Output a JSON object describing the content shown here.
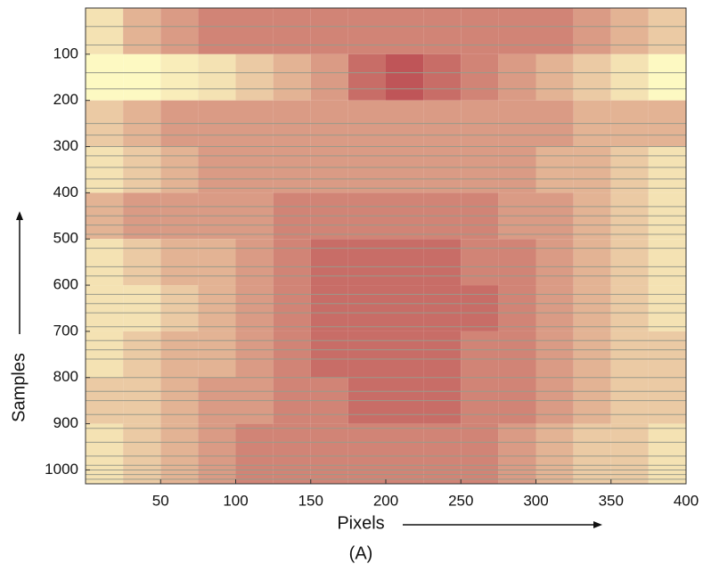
{
  "chart_data": {
    "type": "raster",
    "xlabel": "Pixels",
    "ylabel": "Samples",
    "caption": "(A)",
    "xlim": [
      0,
      400
    ],
    "ylim": [
      0,
      1030
    ],
    "xticks": [
      50,
      100,
      150,
      200,
      250,
      300,
      350,
      400
    ],
    "yticks": [
      100,
      200,
      300,
      400,
      500,
      600,
      700,
      800,
      900,
      1000
    ],
    "color_low": "#fdf9c2",
    "color_high": "#a50f2a",
    "separator_color": "#9a9a8a",
    "xbins": [
      0,
      25,
      50,
      75,
      100,
      125,
      150,
      175,
      200,
      225,
      250,
      275,
      300,
      325,
      350,
      375,
      400
    ],
    "ybins": [
      0,
      100,
      200,
      300,
      400,
      500,
      600,
      700,
      800,
      900,
      1030
    ],
    "density": [
      [
        0.1,
        0.3,
        0.4,
        0.5,
        0.5,
        0.5,
        0.5,
        0.5,
        0.5,
        0.5,
        0.5,
        0.5,
        0.5,
        0.4,
        0.3,
        0.2
      ],
      [
        0,
        0,
        0.05,
        0.1,
        0.2,
        0.3,
        0.4,
        0.6,
        0.7,
        0.6,
        0.5,
        0.4,
        0.3,
        0.2,
        0.1,
        0
      ],
      [
        0.2,
        0.3,
        0.4,
        0.4,
        0.4,
        0.4,
        0.4,
        0.4,
        0.4,
        0.4,
        0.4,
        0.4,
        0.4,
        0.3,
        0.3,
        0.3
      ],
      [
        0.1,
        0.2,
        0.3,
        0.4,
        0.4,
        0.4,
        0.4,
        0.4,
        0.4,
        0.4,
        0.4,
        0.4,
        0.3,
        0.3,
        0.2,
        0.1
      ],
      [
        0.3,
        0.4,
        0.4,
        0.4,
        0.4,
        0.5,
        0.5,
        0.5,
        0.5,
        0.5,
        0.5,
        0.4,
        0.4,
        0.3,
        0.2,
        0.1
      ],
      [
        0.1,
        0.2,
        0.3,
        0.3,
        0.4,
        0.5,
        0.6,
        0.6,
        0.6,
        0.6,
        0.5,
        0.5,
        0.4,
        0.3,
        0.2,
        0.1
      ],
      [
        0.1,
        0.1,
        0.2,
        0.3,
        0.4,
        0.5,
        0.6,
        0.6,
        0.6,
        0.6,
        0.6,
        0.5,
        0.4,
        0.3,
        0.2,
        0.1
      ],
      [
        0.1,
        0.2,
        0.3,
        0.3,
        0.4,
        0.5,
        0.6,
        0.6,
        0.6,
        0.6,
        0.5,
        0.5,
        0.4,
        0.3,
        0.2,
        0.2
      ],
      [
        0.2,
        0.2,
        0.3,
        0.4,
        0.4,
        0.5,
        0.5,
        0.6,
        0.6,
        0.6,
        0.5,
        0.5,
        0.4,
        0.3,
        0.2,
        0.2
      ],
      [
        0.1,
        0.2,
        0.3,
        0.4,
        0.5,
        0.5,
        0.5,
        0.5,
        0.5,
        0.5,
        0.5,
        0.4,
        0.3,
        0.2,
        0.2,
        0.1
      ]
    ],
    "separators": [
      40,
      80,
      140,
      175,
      250,
      275,
      300,
      320,
      345,
      370,
      390,
      430,
      450,
      470,
      490,
      520,
      560,
      580,
      620,
      640,
      660,
      690,
      720,
      740,
      760,
      800,
      830,
      850,
      880,
      910,
      940,
      970,
      990,
      1000,
      1010,
      1020
    ]
  }
}
